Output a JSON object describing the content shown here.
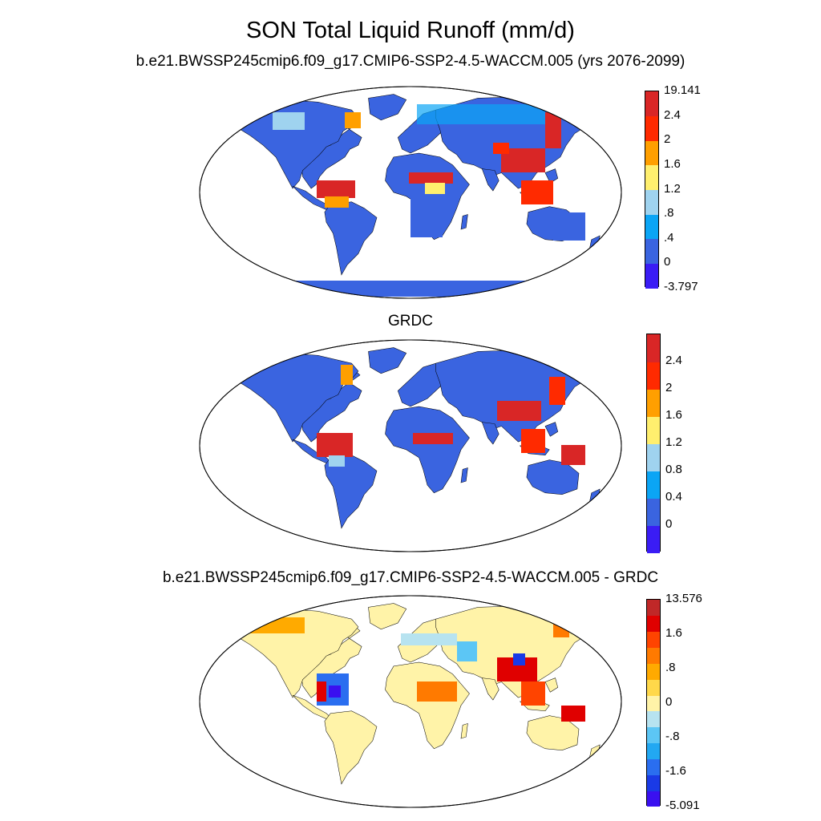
{
  "main_title": "SON Total Liquid Runoff (mm/d)",
  "panels": [
    {
      "id": "model",
      "title": "b.e21.BWSSP245cmip6.f09_g17.CMIP6-SSP2-4.5-WACCM.005 (yrs 2076-2099)",
      "colorbar": {
        "colors": [
          "#3a1cf5",
          "#3a64e0",
          "#0ba5f5",
          "#9fd3ef",
          "#ffef6e",
          "#ff9f00",
          "#ff2a00",
          "#d92626"
        ],
        "labels": [
          "-3.797",
          "0",
          ".4",
          ".8",
          "1.2",
          "1.6",
          "2",
          "2.4",
          "19.141"
        ],
        "min_label": "-3.797",
        "max_label": "19.141"
      }
    },
    {
      "id": "obs",
      "title": "GRDC",
      "colorbar": {
        "colors": [
          "#3a1cf5",
          "#3a64e0",
          "#0ba5f5",
          "#9fd3ef",
          "#ffef6e",
          "#ff9f00",
          "#ff2a00",
          "#d92626"
        ],
        "labels": [
          "0",
          "0.4",
          "0.8",
          "1.2",
          "1.6",
          "2",
          "2.4"
        ]
      }
    },
    {
      "id": "diff",
      "title": "b.e21.BWSSP245cmip6.f09_g17.CMIP6-SSP2-4.5-WACCM.005 - GRDC",
      "colorbar": {
        "colors": [
          "#3a10f0",
          "#1a3ae6",
          "#2a6ef0",
          "#22a8f2",
          "#5cc6f5",
          "#b7e3f0",
          "#fff3a8",
          "#ffd84a",
          "#ffaa00",
          "#ff7a00",
          "#ff4400",
          "#e00000",
          "#c02828"
        ],
        "labels": [
          "-5.091",
          "-1.6",
          "-.8",
          "0",
          ".8",
          "1.6",
          "13.576"
        ],
        "min_label": "-5.091",
        "max_label": "13.576"
      }
    }
  ]
}
